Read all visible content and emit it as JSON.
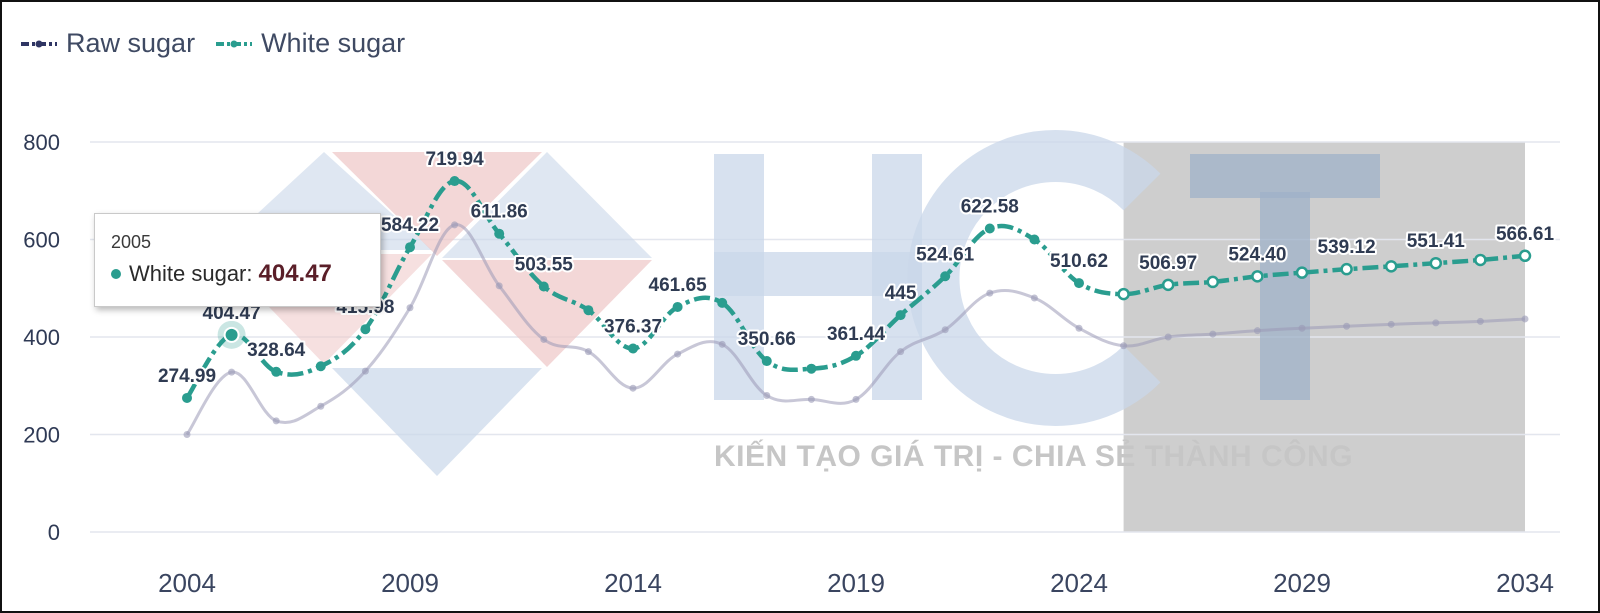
{
  "legend": {
    "raw_label": "Raw sugar",
    "white_label": "White sugar"
  },
  "watermark": {
    "logo_text": "HCT",
    "tagline": "KIẾN TẠO GIÁ TRỊ - CHIA SẺ THÀNH CÔNG"
  },
  "tooltip": {
    "year": "2005",
    "series": "White sugar:",
    "value": "404.47"
  },
  "chart_data": {
    "type": "line",
    "title": "",
    "xlabel": "",
    "ylabel": "",
    "x": [
      2004,
      2005,
      2006,
      2007,
      2008,
      2009,
      2010,
      2011,
      2012,
      2013,
      2014,
      2015,
      2016,
      2017,
      2018,
      2019,
      2020,
      2021,
      2022,
      2023,
      2024,
      2025,
      2026,
      2027,
      2028,
      2029,
      2030,
      2031,
      2032,
      2033,
      2034
    ],
    "xlim": [
      2003.5,
      2034.5
    ],
    "ylim": [
      0,
      800
    ],
    "yticks": [
      0,
      200,
      400,
      600,
      800
    ],
    "xticks": [
      2004,
      2009,
      2014,
      2019,
      2024,
      2029,
      2034
    ],
    "forecast_range": [
      2025,
      2034
    ],
    "forecast_shade_color": "#cecece",
    "grid": true,
    "legend_position": "top-left",
    "series": [
      {
        "name": "Raw sugar",
        "color": "#9a99b6",
        "values": [
          200,
          328,
          228,
          258,
          330,
          460,
          630,
          505,
          395,
          370,
          295,
          365,
          385,
          280,
          272,
          272,
          370,
          415,
          490,
          480,
          418,
          382,
          400,
          406,
          413,
          418,
          422,
          426,
          429,
          432,
          437
        ]
      },
      {
        "name": "White sugar",
        "color": "#2a9d8f",
        "values": [
          274.99,
          404.47,
          328.64,
          340,
          415.98,
          584.22,
          719.94,
          611.86,
          503.55,
          455,
          376.37,
          461.65,
          470,
          350.66,
          335,
          361.44,
          445,
          524.61,
          622.58,
          600,
          510.62,
          488,
          506.97,
          513,
          524.4,
          532,
          539.12,
          545,
          551.41,
          558,
          566.61
        ],
        "labels": [
          "274.99",
          "404.47",
          "328.64",
          null,
          "415.98",
          "584.22",
          "719.94",
          "611.86",
          "503.55",
          null,
          "376.37",
          "461.65",
          null,
          "350.66",
          null,
          "361.44",
          "445",
          "524.61",
          "622.58",
          null,
          "510.62",
          null,
          "506.97",
          null,
          "524.40",
          null,
          "539.12",
          null,
          "551.41",
          null,
          "566.61"
        ]
      }
    ]
  }
}
